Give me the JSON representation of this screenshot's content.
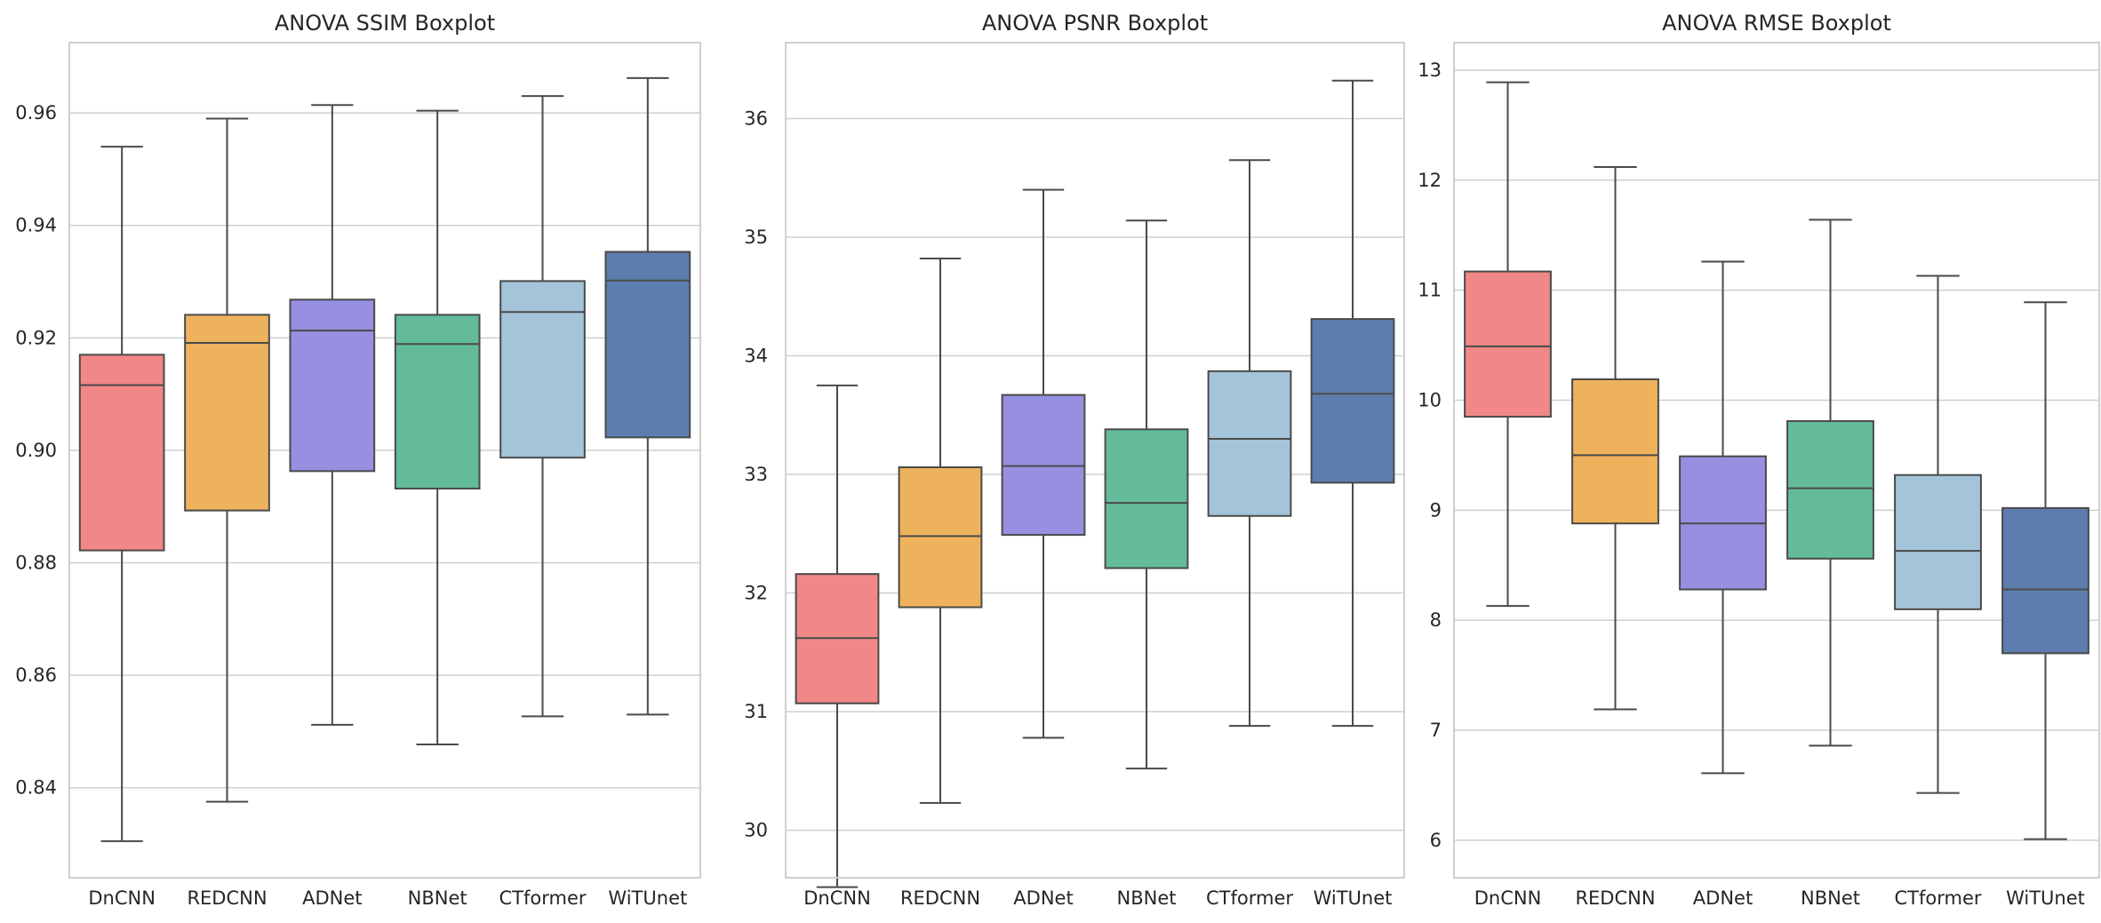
{
  "colors": [
    "#f28787",
    "#efb25c",
    "#978fe0",
    "#63bb9a",
    "#a4c4da",
    "#5c7dad"
  ],
  "chart_data": [
    {
      "type": "box",
      "title": "ANOVA SSIM Boxplot",
      "categories": [
        "DnCNN",
        "REDCNN",
        "ADNet",
        "NBNet",
        "CTformer",
        "WiTUnet"
      ],
      "yticks": [
        "0.84",
        "0.86",
        "0.88",
        "0.90",
        "0.92",
        "0.94",
        "0.96"
      ],
      "ylim": [
        0.824,
        0.9725
      ],
      "grid": true,
      "boxes": [
        {
          "min": 0.8305,
          "q1": 0.8822,
          "median": 0.9116,
          "q3": 0.917,
          "max": 0.954
        },
        {
          "min": 0.8375,
          "q1": 0.8893,
          "median": 0.9191,
          "q3": 0.9241,
          "max": 0.959
        },
        {
          "min": 0.8512,
          "q1": 0.8963,
          "median": 0.9213,
          "q3": 0.9268,
          "max": 0.9614
        },
        {
          "min": 0.8477,
          "q1": 0.8932,
          "median": 0.9189,
          "q3": 0.9241,
          "max": 0.9604
        },
        {
          "min": 0.8527,
          "q1": 0.8987,
          "median": 0.9246,
          "q3": 0.9301,
          "max": 0.963
        },
        {
          "min": 0.853,
          "q1": 0.9023,
          "median": 0.9302,
          "q3": 0.9353,
          "max": 0.9662
        }
      ]
    },
    {
      "type": "box",
      "title": "ANOVA PSNR Boxplot",
      "categories": [
        "DnCNN",
        "REDCNN",
        "ADNet",
        "NBNet",
        "CTformer",
        "WiTUnet"
      ],
      "yticks": [
        "30",
        "31",
        "32",
        "33",
        "34",
        "35",
        "36"
      ],
      "ylim": [
        29.6,
        36.64
      ],
      "grid": true,
      "boxes": [
        {
          "min": 29.52,
          "q1": 31.07,
          "median": 31.62,
          "q3": 32.16,
          "max": 33.75
        },
        {
          "min": 30.23,
          "q1": 31.88,
          "median": 32.48,
          "q3": 33.06,
          "max": 34.82
        },
        {
          "min": 30.78,
          "q1": 32.49,
          "median": 33.07,
          "q3": 33.67,
          "max": 35.4
        },
        {
          "min": 30.52,
          "q1": 32.21,
          "median": 32.76,
          "q3": 33.38,
          "max": 35.14
        },
        {
          "min": 30.88,
          "q1": 32.65,
          "median": 33.3,
          "q3": 33.87,
          "max": 35.65
        },
        {
          "min": 30.88,
          "q1": 32.93,
          "median": 33.68,
          "q3": 34.31,
          "max": 36.32
        }
      ]
    },
    {
      "type": "box",
      "title": "ANOVA RMSE Boxplot",
      "categories": [
        "DnCNN",
        "REDCNN",
        "ADNet",
        "NBNet",
        "CTformer",
        "WiTUnet"
      ],
      "yticks": [
        "6",
        "7",
        "8",
        "9",
        "10",
        "11",
        "12",
        "13"
      ],
      "ylim": [
        5.66,
        13.25
      ],
      "grid": true,
      "boxes": [
        {
          "min": 8.13,
          "q1": 9.85,
          "median": 10.49,
          "q3": 11.17,
          "max": 12.89
        },
        {
          "min": 7.19,
          "q1": 8.88,
          "median": 9.5,
          "q3": 10.19,
          "max": 12.12
        },
        {
          "min": 6.61,
          "q1": 8.28,
          "median": 8.88,
          "q3": 9.49,
          "max": 11.26
        },
        {
          "min": 6.86,
          "q1": 8.56,
          "median": 9.2,
          "q3": 9.81,
          "max": 11.64
        },
        {
          "min": 6.43,
          "q1": 8.1,
          "median": 8.63,
          "q3": 9.32,
          "max": 11.13
        },
        {
          "min": 6.01,
          "q1": 7.7,
          "median": 8.28,
          "q3": 9.02,
          "max": 10.89
        }
      ]
    }
  ]
}
